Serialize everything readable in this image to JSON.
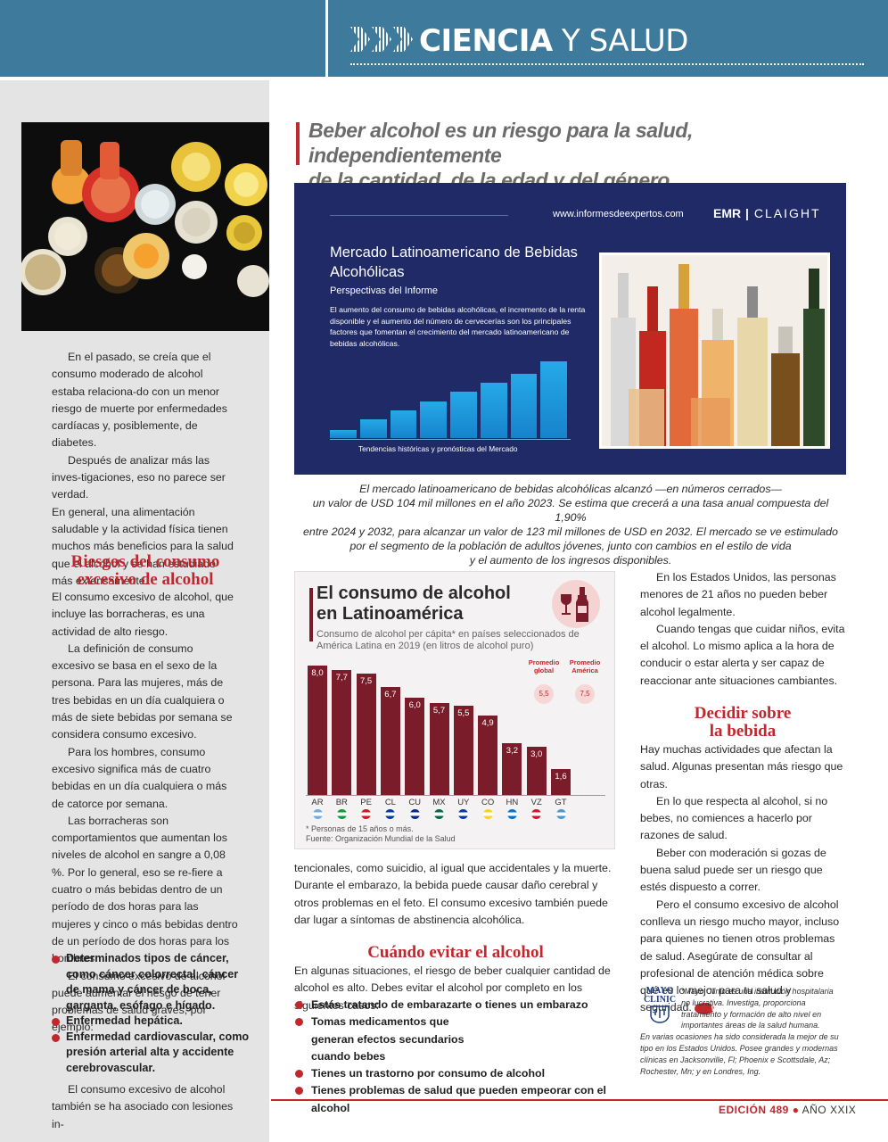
{
  "header": {
    "section_bold": "CIENCIA",
    "section_light": "Y SALUD"
  },
  "headline": {
    "line1": "Beber alcohol es un riesgo para la salud, independientemente",
    "line2": "de la cantidad, de la edad y del género"
  },
  "left": {
    "p1": "En el pasado, se creía que el consumo moderado de alcohol estaba relaciona-do con un menor riesgo de muerte por enfermedades cardíacas y, posiblemente, de diabetes.",
    "p2": "Después de analizar más las inves-tigaciones, eso no parece ser verdad.",
    "p3": "En general, una alimentación saludable y la actividad física tienen muchos más beneficios para la salud que el alcohol y se han estudiado más extensamente.",
    "h_riesgos_1": "Riesgos del consumo",
    "h_riesgos_2": "excesivo de alcohol",
    "p4": "El consumo excesivo de alcohol, que incluye las borracheras, es una actividad de alto riesgo.",
    "p5": "La definición de consumo excesivo se basa en el sexo de la persona. Para las mujeres, más de tres bebidas en un día cualquiera o más de siete bebidas por semana se considera consumo excesivo.",
    "p6": "Para los hombres, consumo excesivo significa más de cuatro bebidas en un día cualquiera o más de catorce por semana.",
    "p7": "Las borracheras son comportamientos que aumentan los niveles de alcohol en sangre a 0,08 %. Por lo general, eso se re-fiere a cuatro o más bebidas dentro de un período de dos horas para las mujeres y cinco o más bebidas dentro de un período de dos horas para los hombres.",
    "p8": "El consumo excesivo de alcohol puede aumentar el riesgo de tener problemas de salud graves, por ejemplo:",
    "bullets": [
      "Determinados tipos de cáncer, como cáncer colorrectal, cáncer de mama y cáncer de boca, garganta, esófago e hígado.",
      "Enfermedad hepática.",
      "Enfermedad cardiovascular, como presión arterial alta y accidente cerebrovascular."
    ],
    "p9": "El consumo excesivo de alcohol también se ha asociado con lesiones in-"
  },
  "infographic": {
    "url": "www.informesdeexpertos.com",
    "logo_a": "EMR",
    "logo_b": "CLAIGHT",
    "title": "Mercado Latinoamericano de Bebidas Alcohólicas",
    "subtitle": "Perspectivas del Informe",
    "description": "El aumento del consumo de bebidas alcohólicas, el incremento de la renta disponible y el aumento del número de cervecerías son los principales factores que fomentan el crecimiento del mercado latinoamericano de bebidas alcohólicas.",
    "bars_caption": "Tendencias históricas y pronósticas del Mercado",
    "bars": [
      0.1,
      0.24,
      0.36,
      0.48,
      0.6,
      0.72,
      0.84,
      1.0
    ]
  },
  "caption": {
    "l1": "El mercado latinoamericano de bebidas alcohólicas alcanzó —en números cerrados—",
    "l2": "un valor de USD 104 mil millones en el año 2023. Se estima que crecerá a una tasa anual compuesta del 1,90%",
    "l3": "entre 2024 y 2032, para alcanzar un valor de 123 mil millones de USD en 2032. El mercado se ve estimulado",
    "l4": "por el segmento de la población de adultos jóvenes, junto con cambios en el estilo de vida",
    "l5": "y el aumento de los ingresos disponibles."
  },
  "chart_data": {
    "type": "bar",
    "title": "El consumo de alcohol en Latinoamérica",
    "subtitle": "Consumo de alcohol per cápita* en países seleccionados de América Latina en 2019 (en litros de alcohol puro)",
    "categories": [
      "AR",
      "BR",
      "PE",
      "CL",
      "CU",
      "MX",
      "UY",
      "CO",
      "HN",
      "VZ",
      "GT"
    ],
    "values": [
      8.0,
      7.7,
      7.5,
      6.7,
      6.0,
      5.7,
      5.5,
      4.9,
      3.2,
      3.0,
      1.6
    ],
    "value_labels": [
      "8,0",
      "7,7",
      "7,5",
      "6,7",
      "6,0",
      "5,7",
      "5,5",
      "4,9",
      "3,2",
      "3,0",
      "1,6"
    ],
    "ylim": [
      0,
      8
    ],
    "color": "#7a1c2a",
    "legend_global_label": "Promedio global",
    "legend_global_value": "5,5",
    "legend_america_label": "Promedio América",
    "legend_america_value": "7,5",
    "note": "* Personas de 15 años o más.",
    "source": "Fuente: Organización Mundial de la Salud"
  },
  "middle": {
    "p1": "tencionales, como suicidio, al igual que accidentales y la muerte. Durante el embarazo, la bebida puede causar daño cerebral y otros problemas en el feto. El consumo excesivo también puede dar lugar a síntomas de abstinencia alcohólica.",
    "h_cuando": "Cuándo evitar el alcohol",
    "p2": "En algunas situaciones, el riesgo de beber cualquier cantidad de alcohol es alto. Debes evitar el alcohol por completo en los siguientes casos:",
    "bullets": [
      "Estás tratando de embarazarte o tienes un embarazo",
      "Tomas medicamentos que generan efectos secundarios cuando bebes",
      "Tienes un trastorno por consumo de alcohol",
      "Tienes problemas de salud que pueden empeorar con el alcohol"
    ]
  },
  "right": {
    "p1": "En los Estados Unidos, las personas menores de 21 años no pueden beber alcohol legalmente.",
    "p2": "Cuando tengas que cuidar niños, evita el alcohol. Lo mismo aplica a la hora de conducir o estar alerta y ser capaz de reaccionar ante situaciones cambiantes.",
    "h_decidir_1": "Decidir sobre",
    "h_decidir_2": "la bebida",
    "p3": "Hay muchas actividades que afectan la salud. Algunas presentan más riesgo que otras.",
    "p4": "En lo que respecta al alcohol, si no bebes, no comiences a hacerlo por razones de salud.",
    "p5": "Beber con moderación si gozas de buena salud puede ser un riesgo que estés dispuesto a correr.",
    "p6": "Pero el consumo excesivo de alcohol conlleva un riesgo mucho mayor, incluso para quienes no tienen otros problemas de salud. Asegúrate de consultar al profesional de atención médica sobre qué es lo mejor para tu salud y seguridad.",
    "vp": "VP",
    "mayo_logo_1": "MAYO",
    "mayo_logo_2": "CLINIC",
    "mayo_text_1": "*Mayo Clinic es una institución hospitalaria no lucrativa. Investiga, proporciona tratamiento y formación de alto nivel en importantes áreas de la salud humana.",
    "mayo_text_2": "En varias ocasiones ha sido considerada la mejor de su tipo en los Estados Unidos. Posee grandes y modernas clínicas en Jacksonville, Fl; Phoenix e Scottsdale, Az; Rochester, Mn; y en Londres, Ing."
  },
  "footer": {
    "edition": "EDICIÓN 489",
    "year": "AÑO XXIX"
  }
}
